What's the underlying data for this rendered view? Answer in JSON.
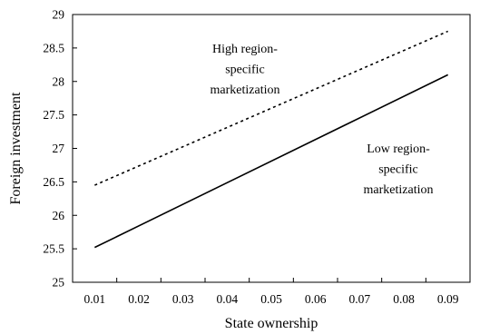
{
  "chart_data": {
    "type": "line",
    "title": "",
    "xlabel": "State ownership",
    "ylabel": "Foreign investment",
    "categories": [
      "0.01",
      "0.02",
      "0.03",
      "0.04",
      "0.05",
      "0.06",
      "0.07",
      "0.08",
      "0.09"
    ],
    "x": [
      0.01,
      0.09
    ],
    "ylim": [
      25,
      29
    ],
    "yticks": [
      "25",
      "25.5",
      "26",
      "26.5",
      "27",
      "27.5",
      "28",
      "28.5",
      "29"
    ],
    "grid": false,
    "legend": "none",
    "series": [
      {
        "name": "",
        "style": "dotted",
        "values": [
          26.45,
          28.75
        ]
      },
      {
        "name": "",
        "style": "solid",
        "values": [
          25.52,
          28.1
        ]
      }
    ],
    "annotations": [
      {
        "lines": [
          "High region-",
          "specific",
          "marketization"
        ],
        "near_series": 0
      },
      {
        "lines": [
          "Low region-",
          "specific",
          "marketization"
        ],
        "near_series": 1
      }
    ]
  }
}
